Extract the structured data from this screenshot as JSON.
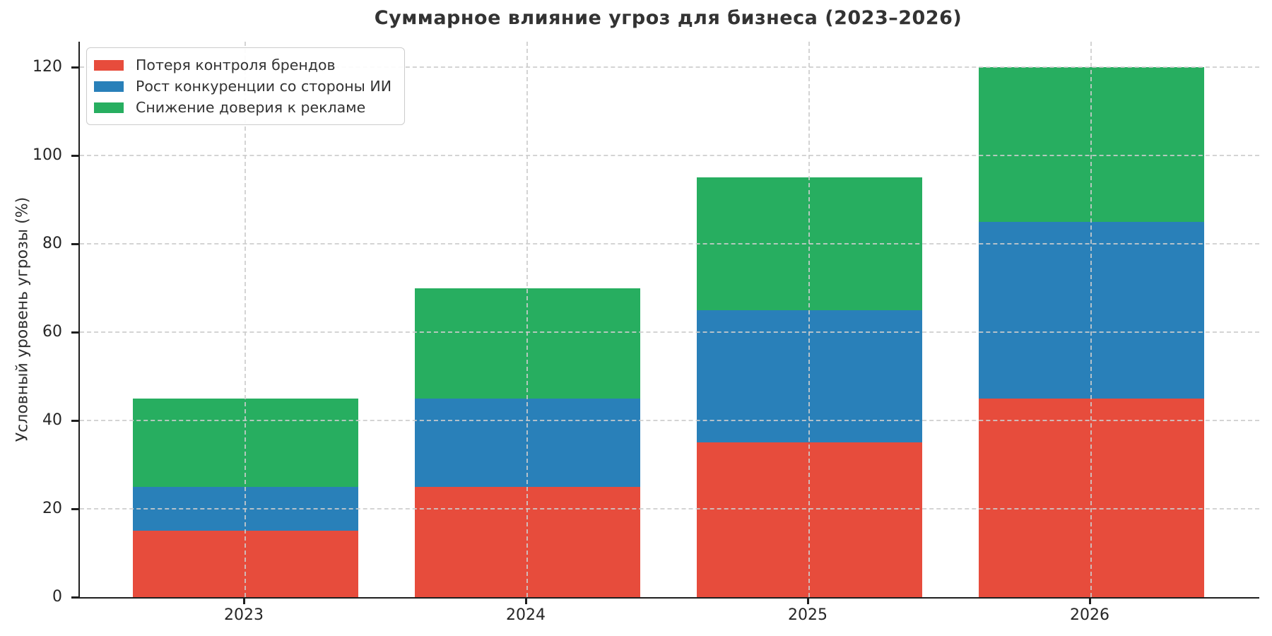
{
  "title": "Суммарное влияние угроз для бизнеса (2023–2026)",
  "ylabel": "Условный уровень угрозы (%)",
  "legend": {
    "position": "upper left",
    "items": [
      {
        "label": "Потеря контроля брендов",
        "color": "#e74c3c"
      },
      {
        "label": "Рост конкуренции со стороны ИИ",
        "color": "#2980b9"
      },
      {
        "label": "Снижение доверия к рекламе",
        "color": "#27ae60"
      }
    ]
  },
  "chart_data": {
    "type": "bar",
    "stacked": true,
    "title": "Суммарное влияние угроз для бизнеса (2023–2026)",
    "xlabel": "",
    "ylabel": "Условный уровень угрозы (%)",
    "categories": [
      "2023",
      "2024",
      "2025",
      "2026"
    ],
    "series": [
      {
        "name": "Потеря контроля брендов",
        "color": "#e74c3c",
        "values": [
          15,
          25,
          35,
          45
        ]
      },
      {
        "name": "Рост конкуренции со стороны ИИ",
        "color": "#2980b9",
        "values": [
          10,
          20,
          30,
          40
        ]
      },
      {
        "name": "Снижение доверия к рекламе",
        "color": "#27ae60",
        "values": [
          20,
          25,
          30,
          35
        ]
      }
    ],
    "stack_totals": [
      45,
      70,
      95,
      120
    ],
    "yticks": [
      0,
      20,
      40,
      60,
      80,
      100,
      120
    ],
    "ylim": [
      0,
      125.8
    ],
    "grid": true,
    "grid_style": "dashed",
    "grid_color": "#cccccc",
    "legend_position": "upper left"
  },
  "colors": {
    "background": "#ffffff",
    "text": "#333333",
    "tick_text": "#262626",
    "spine": "#1f1f1f",
    "grid": "#cccccc"
  }
}
